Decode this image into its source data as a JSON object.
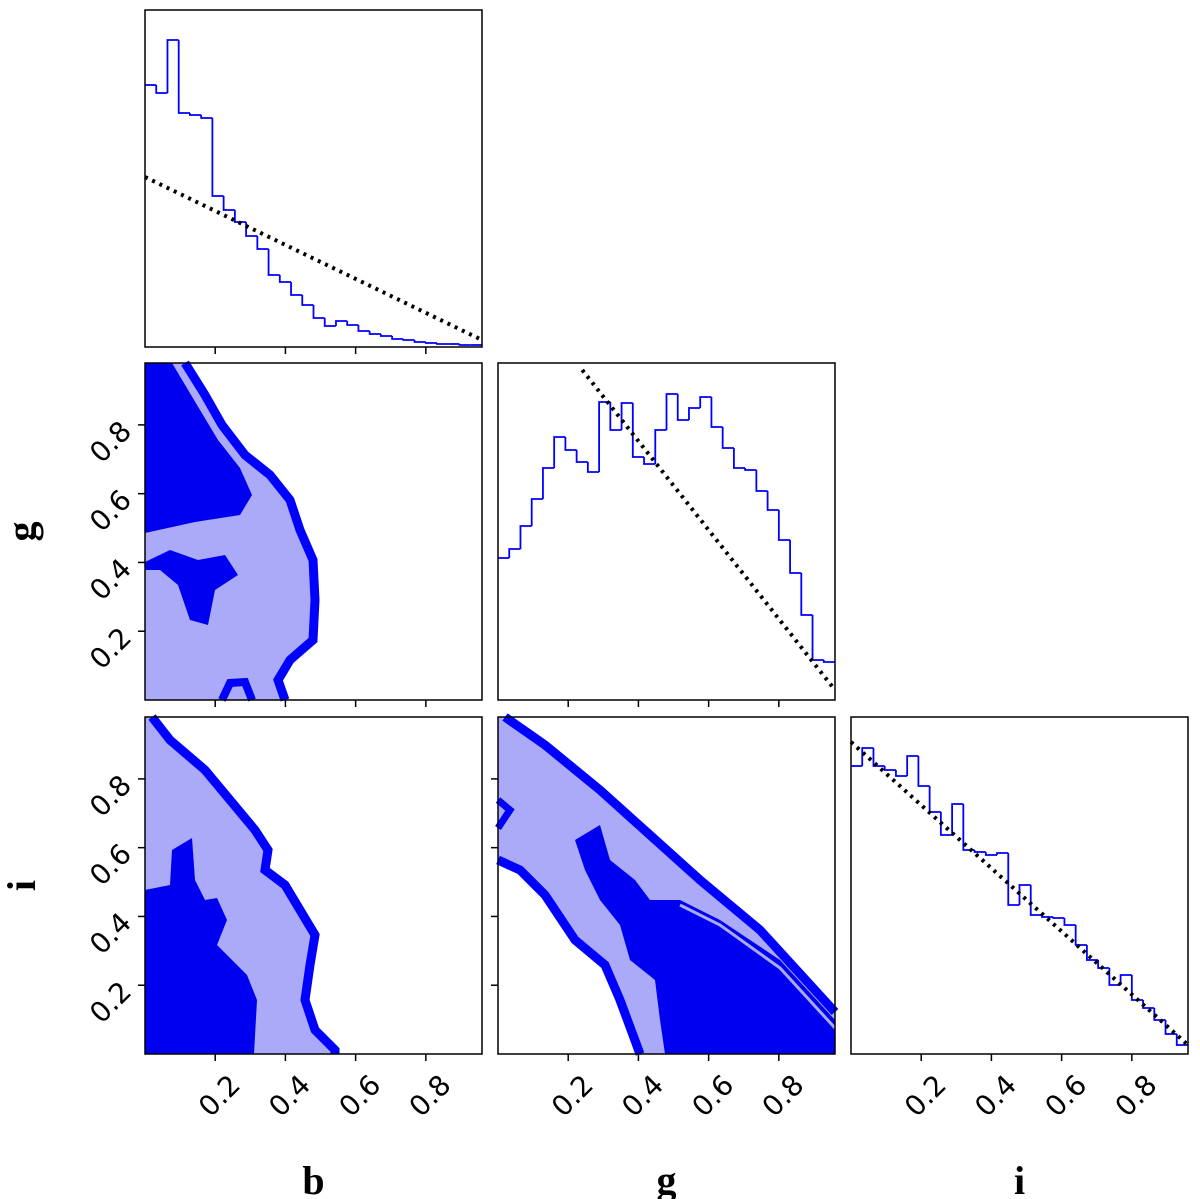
{
  "chart_data": [
    {
      "type": "histogram",
      "color": "#0000ff",
      "bins": [
        0,
        0.032,
        0.064,
        0.096,
        0.128,
        0.16,
        0.192,
        0.224,
        0.256,
        0.288,
        0.32,
        0.352,
        0.384,
        0.416,
        0.448,
        0.48,
        0.512,
        0.544,
        0.576,
        0.608,
        0.64,
        0.672,
        0.704,
        0.736,
        0.768,
        0.8,
        0.832,
        0.864,
        0.896,
        0.928,
        0.96
      ],
      "values": [
        262,
        254,
        307,
        234,
        232,
        229,
        151,
        137,
        125,
        111,
        98,
        72,
        65,
        52,
        42,
        29,
        21,
        26,
        22,
        16,
        13,
        11,
        8,
        7,
        5,
        4,
        3,
        3,
        2,
        2
      ],
      "reference_line": {
        "x": [
          0,
          0.96
        ],
        "values": [
          170,
          7
        ],
        "color": "#000000"
      },
      "xlim": [
        0,
        0.96
      ],
      "ylim": [
        0,
        337
      ],
      "xticks": [
        0.2,
        0.4,
        0.6,
        0.8
      ],
      "show_xtick_labels": false
    },
    {
      "type": "contour",
      "y_label": "g",
      "xlim": [
        0,
        0.96
      ],
      "ylim": [
        0,
        0.98
      ],
      "xticks": [
        0.2,
        0.4,
        0.6,
        0.8
      ],
      "yticks": [
        0.2,
        0.4,
        0.6,
        0.8
      ],
      "show_xtick_labels": false,
      "show_ytick_labels": true
    },
    {
      "type": "histogram",
      "color": "#0000ff",
      "bins": [
        0,
        0.032,
        0.064,
        0.096,
        0.128,
        0.16,
        0.192,
        0.224,
        0.256,
        0.288,
        0.32,
        0.352,
        0.384,
        0.416,
        0.448,
        0.48,
        0.512,
        0.544,
        0.576,
        0.608,
        0.64,
        0.672,
        0.704,
        0.736,
        0.768,
        0.8,
        0.832,
        0.864,
        0.896,
        0.928,
        0.96
      ],
      "values": [
        142,
        151,
        174,
        201,
        232,
        263,
        250,
        238,
        228,
        298,
        270,
        297,
        243,
        236,
        270,
        306,
        280,
        292,
        303,
        273,
        252,
        232,
        230,
        209,
        190,
        160,
        127,
        85,
        40,
        38
      ],
      "reference_line": {
        "x": [
          0.24,
          0.96
        ],
        "values": [
          330,
          10
        ],
        "color": "#000000"
      },
      "xlim": [
        0,
        0.96
      ],
      "ylim": [
        0,
        337
      ],
      "xticks": [
        0.2,
        0.4,
        0.6,
        0.8
      ],
      "show_xtick_labels": false
    },
    {
      "type": "contour",
      "x_label": "b",
      "y_label": "i",
      "xlim": [
        0,
        0.96
      ],
      "ylim": [
        0,
        0.98
      ],
      "xticks": [
        0.2,
        0.4,
        0.6,
        0.8
      ],
      "yticks": [
        0.2,
        0.4,
        0.6,
        0.8
      ],
      "show_xtick_labels": true,
      "show_ytick_labels": true
    },
    {
      "type": "contour",
      "x_label": "g",
      "xlim": [
        0,
        0.96
      ],
      "ylim": [
        0,
        0.98
      ],
      "xticks": [
        0.2,
        0.4,
        0.6,
        0.8
      ],
      "yticks": [
        0.2,
        0.4,
        0.6,
        0.8
      ],
      "show_xtick_labels": true,
      "show_ytick_labels": false
    },
    {
      "type": "histogram",
      "color": "#0000ff",
      "x_label": "i",
      "bins": [
        0,
        0.032,
        0.064,
        0.096,
        0.128,
        0.16,
        0.192,
        0.224,
        0.256,
        0.288,
        0.32,
        0.352,
        0.384,
        0.416,
        0.448,
        0.48,
        0.512,
        0.544,
        0.576,
        0.608,
        0.64,
        0.672,
        0.704,
        0.736,
        0.768,
        0.8,
        0.832,
        0.864,
        0.896,
        0.928,
        0.96
      ],
      "values": [
        288,
        306,
        288,
        284,
        278,
        298,
        268,
        242,
        219,
        250,
        204,
        202,
        199,
        201,
        149,
        169,
        139,
        137,
        136,
        129,
        109,
        94,
        86,
        69,
        79,
        54,
        46,
        34,
        20,
        9
      ],
      "reference_line": {
        "x": [
          0,
          0.96
        ],
        "values": [
          312,
          9
        ],
        "color": "#000000"
      },
      "xlim": [
        0,
        0.96
      ],
      "ylim": [
        0,
        337
      ],
      "xticks": [
        0.2,
        0.4,
        0.6,
        0.8
      ],
      "show_xtick_labels": true
    }
  ]
}
